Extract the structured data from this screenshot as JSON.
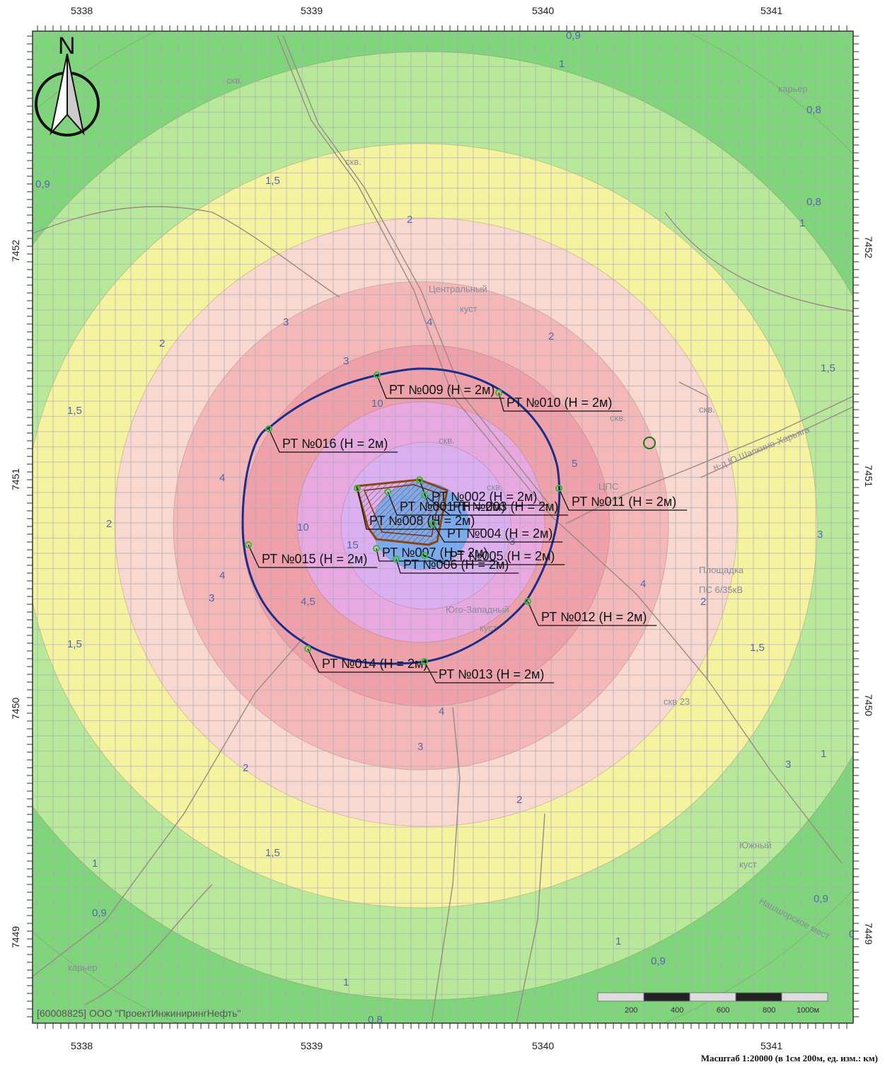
{
  "map": {
    "grid_x_labels": [
      "5338",
      "5339",
      "5340",
      "5341"
    ],
    "grid_y_labels": [
      "7452",
      "7451",
      "7450",
      "7449"
    ],
    "north_label": "N",
    "contour_colors": [
      "#7fd67a",
      "#b8e89a",
      "#f6f3a0",
      "#f8d8cf",
      "#f4b8b8",
      "#f0a0a8",
      "#e8a8e0",
      "#dcb0f0",
      "#78aaf0"
    ],
    "isoline_labels": [
      {
        "text": "0,9"
      },
      {
        "text": "1"
      },
      {
        "text": "0,8"
      },
      {
        "text": "0,8"
      },
      {
        "text": "1,5"
      },
      {
        "text": "0,9"
      },
      {
        "text": "1"
      },
      {
        "text": "2"
      },
      {
        "text": "3"
      },
      {
        "text": "2"
      },
      {
        "text": "1,5"
      },
      {
        "text": "1,5"
      },
      {
        "text": "2"
      },
      {
        "text": "4"
      },
      {
        "text": "3"
      },
      {
        "text": "3"
      },
      {
        "text": "4"
      },
      {
        "text": "10"
      },
      {
        "text": "4"
      },
      {
        "text": "5"
      },
      {
        "text": "2"
      },
      {
        "text": "4"
      },
      {
        "text": "3"
      },
      {
        "text": "4,5"
      },
      {
        "text": "1,5"
      },
      {
        "text": "3"
      },
      {
        "text": "2"
      },
      {
        "text": "1,5"
      },
      {
        "text": "2"
      },
      {
        "text": "1,5"
      },
      {
        "text": "4"
      },
      {
        "text": "3"
      },
      {
        "text": "1"
      },
      {
        "text": "0,9"
      },
      {
        "text": "0,8"
      },
      {
        "text": "1"
      },
      {
        "text": "1"
      },
      {
        "text": "0,9"
      },
      {
        "text": "1"
      },
      {
        "text": "0,9"
      },
      {
        "text": "0,8"
      },
      {
        "text": "10"
      },
      {
        "text": "15"
      },
      {
        "text": "3"
      },
      {
        "text": "2"
      }
    ],
    "place_labels": [
      "скв.",
      "скв.",
      "карьер",
      "Центральный",
      "куст",
      "скв.",
      "скв.",
      "скв.",
      "ЦПС",
      "н-д Ю.Шапкино-Харьяга",
      "Площадка",
      "ПС 6/35кВ",
      "Юго-Западный",
      "куст",
      "скв 23",
      "Южный",
      "куст",
      "Нашшорское мест",
      "карьер",
      "скв."
    ],
    "points": [
      "РТ №009 (Н = 2м)",
      "РТ №010 (Н = 2м)",
      "РТ №016 (Н = 2м)",
      "РТ №002 (Н = 2м)",
      "РТ №001 (Н = 2м)",
      "РТ №003 (Н = 2м)",
      "РТ №011 (Н = 2м)",
      "РТ №008 (Н = 2м)",
      "РТ №004 (Н = 2м)",
      "РТ №007 (Н = 2м)",
      "РТ №005 (Н = 2м)",
      "РТ №006 (Н = 2м)",
      "РТ №015 (Н = 2м)",
      "РТ №012 (Н = 2м)",
      "РТ №014 (Н = 2м)",
      "РТ №013 (Н = 2м)"
    ],
    "organization": "[60008825] ООО \"ПроектИнжинирингНефть\"",
    "scale_bar_ticks": [
      "200",
      "400",
      "600",
      "800",
      "1000м"
    ],
    "scale_caption": "Масштаб 1:20000 (в 1см 200м, ед. изм.: км)"
  }
}
